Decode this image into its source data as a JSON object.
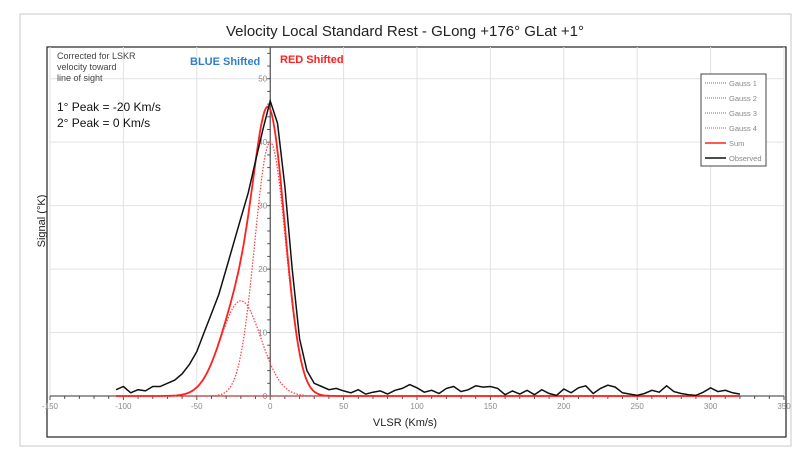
{
  "chart_data": {
    "type": "line",
    "title": "Velocity Local Standard Rest - GLong +176° GLat +1°",
    "xlabel": "VLSR (Km/s)",
    "ylabel": "Signal (°K)",
    "xlim": [
      -150,
      350
    ],
    "ylim": [
      0,
      55
    ],
    "xticks": [
      -150,
      -100,
      -50,
      0,
      50,
      100,
      150,
      200,
      250,
      300,
      350
    ],
    "yticks": [
      0,
      10,
      20,
      30,
      40,
      50
    ],
    "grid": true,
    "legend_position": "top-right",
    "annotations": {
      "note": [
        "Corrected for LSKR",
        "velocity toward",
        "line of sight"
      ],
      "peak1": "1° Peak = -20 Km/s",
      "peak2": "2° Peak = 0 Km/s",
      "blue": "BLUE Shifted",
      "red": "RED Shifted"
    },
    "gaussians": [
      {
        "name": "Gauss 1",
        "amplitude": 40,
        "center": 0,
        "sigma": 10.5
      },
      {
        "name": "Gauss 2",
        "amplitude": 15,
        "center": -20,
        "sigma": 13.7
      },
      {
        "name": "Gauss 3",
        "amplitude": 0,
        "center": 0,
        "sigma": 10
      },
      {
        "name": "Gauss 4",
        "amplitude": 0,
        "center": 0,
        "sigma": 10
      }
    ],
    "fit_range": [
      -105,
      320
    ],
    "series": [
      {
        "name": "Gauss 1",
        "color": "#ff3b3b",
        "style": "dotted"
      },
      {
        "name": "Gauss 2",
        "color": "#ff3b3b",
        "style": "dotted"
      },
      {
        "name": "Gauss 3",
        "color": "#ff3b3b",
        "style": "dotted"
      },
      {
        "name": "Gauss 4",
        "color": "#ff3b3b",
        "style": "dotted"
      },
      {
        "name": "Sum",
        "color": "#ff2020",
        "style": "solid"
      },
      {
        "name": "Observed",
        "color": "#111111",
        "style": "solid"
      }
    ],
    "observed": {
      "x_start": -105,
      "x_step": 5,
      "values": [
        1,
        1.5,
        0.5,
        1,
        0.8,
        1.5,
        1.5,
        2,
        2.5,
        3.5,
        5,
        7,
        10,
        13,
        16,
        20,
        24,
        28,
        32,
        37,
        42,
        46.5,
        43,
        33,
        20,
        9,
        4,
        2,
        1.5,
        1,
        1.2,
        0.8,
        0.5,
        1,
        0.3,
        0.6,
        0.8,
        0.3,
        0.9,
        1.2,
        1.8,
        1.3,
        0.6,
        0.9,
        0.4,
        1.2,
        1.5,
        0.7,
        1.0,
        1.6,
        1.4,
        1.5,
        1.2,
        0.2,
        0.8,
        0.3,
        0.9,
        0.2,
        1.0,
        0.4,
        0.1,
        1.1,
        0.5,
        1.3,
        1.6,
        0.4,
        1.2,
        1.7,
        1.4,
        0.5,
        0.3,
        0.1,
        0.4,
        0.9,
        0.6,
        1.6,
        0.7,
        0.4,
        0.2,
        0.1,
        0.6,
        1.3,
        0.7,
        0.9,
        0.5,
        0.3
      ]
    }
  }
}
